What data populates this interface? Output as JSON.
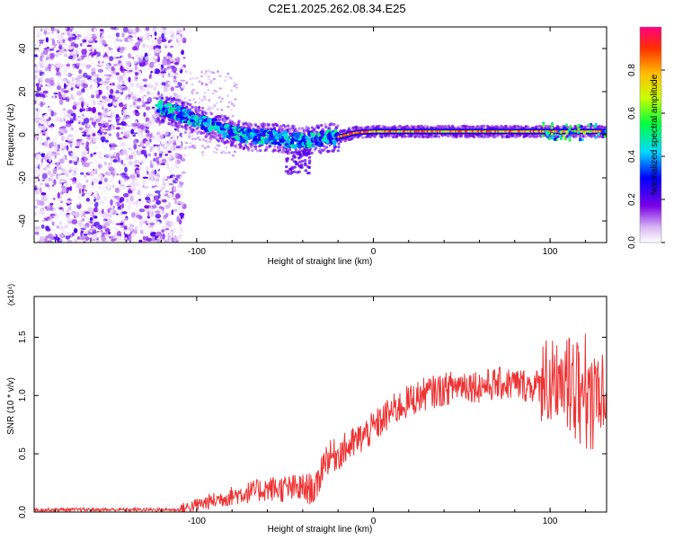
{
  "title": "C2E1.2025.262.08.34.E25",
  "chart_data": [
    {
      "type": "heatmap",
      "name": "spectrogram",
      "xlabel": "Height of straight line (km)",
      "ylabel": "Frequency (Hz)",
      "xlim": [
        -192,
        132
      ],
      "ylim": [
        -50,
        50
      ],
      "x_ticks": [
        -100,
        0,
        100
      ],
      "y_ticks": [
        -40,
        -20,
        0,
        20,
        40
      ],
      "colorbar": {
        "label": "Normalized spectral amplitude",
        "range": [
          0,
          1
        ],
        "ticks": [
          "0.0",
          "0.2",
          "0.4",
          "0.6",
          "0.8"
        ]
      },
      "ridge": {
        "x": [
          -120,
          -110,
          -100,
          -90,
          -80,
          -70,
          -60,
          -50,
          -40,
          -30,
          -20,
          -10,
          0,
          20,
          40,
          60,
          80,
          100,
          110,
          120,
          132
        ],
        "freq": [
          12,
          10,
          7,
          4,
          1,
          -1,
          -1,
          -2,
          -3,
          -2,
          -1,
          1,
          1.5,
          1.5,
          1.5,
          1.5,
          1.5,
          1.5,
          1.5,
          1.5,
          1.5
        ]
      },
      "noise_region": [
        -192,
        -107
      ]
    },
    {
      "type": "line",
      "name": "snr",
      "xlabel": "Height of straight line (km)",
      "ylabel": "SNR (10 * v/v)",
      "multiplier": "(x10⁴)",
      "xlim": [
        -192,
        132
      ],
      "ylim": [
        0,
        1.85
      ],
      "x_ticks": [
        -100,
        0,
        100
      ],
      "y_ticks": [
        "0.0",
        "0.5",
        "1.0",
        "1.5"
      ],
      "y_tick_values": [
        0,
        0.5,
        1.0,
        1.5
      ],
      "color": "#ee3333",
      "envelope": {
        "x": [
          -192,
          -110,
          -100,
          -90,
          -80,
          -70,
          -60,
          -50,
          -40,
          -32,
          -28,
          -20,
          -10,
          0,
          10,
          20,
          30,
          40,
          50,
          60,
          70,
          80,
          90,
          100,
          110,
          120,
          132
        ],
        "y": [
          0.02,
          0.02,
          0.06,
          0.1,
          0.14,
          0.17,
          0.2,
          0.2,
          0.2,
          0.2,
          0.45,
          0.5,
          0.6,
          0.72,
          0.86,
          0.95,
          1.02,
          1.05,
          1.1,
          1.08,
          1.1,
          1.1,
          1.08,
          1.1,
          1.1,
          1.05,
          1.0
        ]
      }
    }
  ]
}
